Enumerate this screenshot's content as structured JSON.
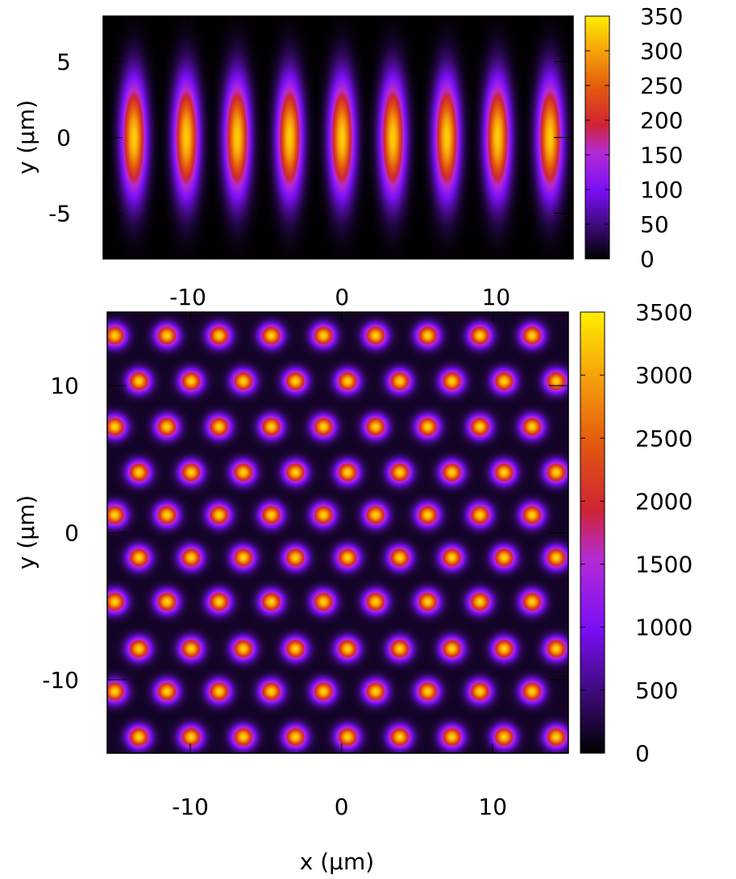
{
  "chart_data": [
    {
      "type": "heatmap",
      "title": "",
      "xlabel": "",
      "ylabel": "y (μm)",
      "xlim": [
        -15.5,
        15
      ],
      "ylim": [
        -8,
        8
      ],
      "x_ticks": [
        -10,
        0,
        10
      ],
      "y_ticks": [
        5,
        0,
        -5
      ],
      "x_tick_labels": [
        "-10",
        "0",
        "10"
      ],
      "y_tick_labels": [
        "5",
        "0",
        "-5"
      ],
      "colorbar": {
        "range": [
          0,
          350
        ],
        "ticks": [
          0,
          50,
          100,
          150,
          200,
          250,
          300,
          350
        ],
        "tick_labels": [
          "0",
          "50",
          "100",
          "150",
          "200",
          "250",
          "300",
          "350"
        ]
      },
      "colormap": "black-purple-red-orange-yellow",
      "grid": false,
      "pattern": "1D lattice of elongated wells (along y)",
      "peaks": {
        "x_centers": [
          -13.5,
          -10.1,
          -6.8,
          -3.4,
          0.0,
          3.3,
          6.8,
          10.1,
          13.5
        ],
        "y_center": 0,
        "sigma_x": 0.55,
        "sigma_y": 2.6,
        "peak_value": 330
      },
      "background_value": 0
    },
    {
      "type": "heatmap",
      "title": "",
      "xlabel": "x (μm)",
      "ylabel": "y (μm)",
      "xlim": [
        -15.5,
        15
      ],
      "ylim": [
        -15,
        15
      ],
      "x_ticks": [
        -10,
        0,
        10
      ],
      "y_ticks": [
        10,
        0,
        -10
      ],
      "x_tick_labels": [
        "-10",
        "0",
        "10"
      ],
      "y_tick_labels": [
        "10",
        "0",
        "-10"
      ],
      "colorbar": {
        "range": [
          0,
          3500
        ],
        "ticks": [
          0,
          500,
          1000,
          1500,
          2000,
          2500,
          3000,
          3500
        ],
        "tick_labels": [
          "0",
          "500",
          "1000",
          "1500",
          "2000",
          "2500",
          "3000",
          "3500"
        ]
      },
      "colormap": "black-purple-red-orange-yellow",
      "grid": false,
      "pattern": "triangular lattice of wells",
      "peaks": {
        "row_y": [
          13.4,
          10.3,
          7.2,
          4.1,
          1.2,
          -1.7,
          -4.7,
          -7.9,
          -10.8,
          -13.9
        ],
        "row_x_start_even": -15.0,
        "row_x_start_odd": -13.4,
        "x_spacing": 3.45,
        "sigma": 0.5,
        "peak_value": 3200
      },
      "background_value": 150
    }
  ]
}
